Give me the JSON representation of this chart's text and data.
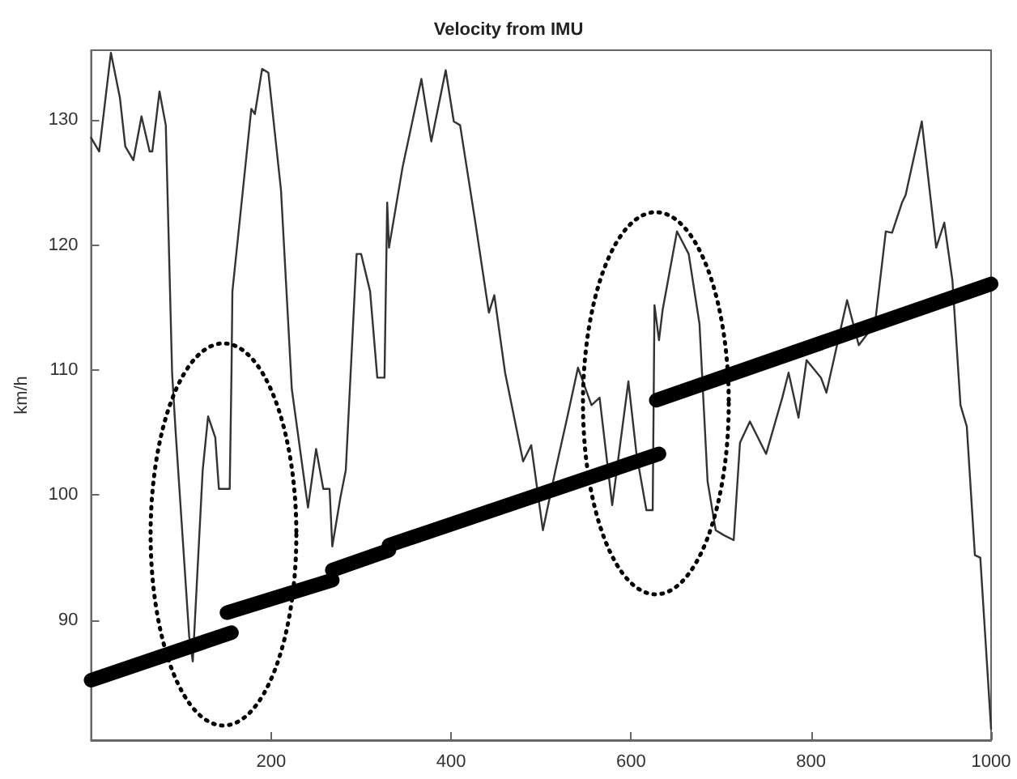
{
  "chart_data": {
    "type": "line",
    "title": "Velocity from IMU",
    "ylabel": "km/h",
    "xlim": [
      0,
      1000
    ],
    "ylim": [
      80.4,
      135.6
    ],
    "xticks": [
      200,
      400,
      600,
      800,
      1000
    ],
    "yticks": [
      90,
      100,
      110,
      120,
      130
    ],
    "grid": false,
    "marker": "none",
    "line_style": "solid",
    "series": [
      {
        "color": "#333333",
        "x": [
          0,
          9,
          22,
          32,
          38,
          47,
          56,
          65,
          68,
          76,
          83,
          90,
          94,
          109,
          113,
          124,
          130,
          138,
          142,
          154,
          156,
          157,
          178,
          182,
          190,
          197,
          211,
          223,
          241,
          250,
          258,
          265,
          268,
          277,
          283,
          295,
          300,
          310,
          318,
          326,
          329,
          331,
          346,
          367,
          378,
          394,
          403,
          410,
          427,
          442,
          448,
          460,
          480,
          489,
          502,
          516,
          529,
          541,
          556,
          565,
          579,
          597,
          606,
          617,
          624,
          626,
          631,
          635,
          651,
          664,
          676,
          685,
          694,
          703,
          714,
          721,
          732,
          750,
          768,
          775,
          786,
          795,
          811,
          817,
          840,
          853,
          871,
          883,
          890,
          901,
          905,
          923,
          939,
          948,
          957,
          966,
          973,
          982,
          988,
          1000
        ],
        "values": [
          128.6,
          127.5,
          135.4,
          131.8,
          127.9,
          126.8,
          130.3,
          127.5,
          127.5,
          132.3,
          129.6,
          109.8,
          105,
          88.7,
          86.7,
          102,
          106.3,
          104.6,
          100.5,
          100.5,
          109.8,
          116.3,
          130.9,
          130.5,
          134.1,
          133.8,
          124.4,
          108.5,
          99.0,
          103.7,
          100.5,
          100.5,
          95.9,
          99.8,
          102,
          119.3,
          119.3,
          116.3,
          109.4,
          109.4,
          123.4,
          119.8,
          126.2,
          133.3,
          128.3,
          134,
          129.9,
          129.6,
          121.8,
          114.6,
          116,
          109.8,
          102.7,
          104,
          97.2,
          102,
          106.2,
          110.2,
          107.2,
          107.8,
          99.2,
          109.1,
          103.3,
          98.8,
          98.8,
          115.2,
          112.4,
          114.8,
          121.1,
          119.3,
          113.7,
          101.1,
          97.2,
          96.8,
          96.4,
          104.2,
          105.9,
          103.3,
          107.8,
          109.8,
          106.2,
          110.8,
          109.4,
          108.2,
          115.6,
          112,
          113.7,
          121.1,
          121,
          123.4,
          124,
          129.9,
          119.8,
          121.8,
          117.2,
          107.2,
          105.5,
          95.2,
          95,
          81.3
        ]
      },
      {
        "color": "#000000",
        "x": [
          0,
          156
        ],
        "values": [
          85.2,
          89.0
        ]
      },
      {
        "color": "#000000",
        "x": [
          151,
          268
        ],
        "values": [
          90.6,
          93.2
        ]
      },
      {
        "color": "#000000",
        "x": [
          268,
          331
        ],
        "values": [
          94.0,
          95.6
        ]
      },
      {
        "color": "#000000",
        "x": [
          331,
          631
        ],
        "values": [
          96.0,
          103.3
        ]
      },
      {
        "color": "#000000",
        "x": [
          628,
          1000
        ],
        "values": [
          107.6,
          116.9
        ]
      }
    ]
  }
}
